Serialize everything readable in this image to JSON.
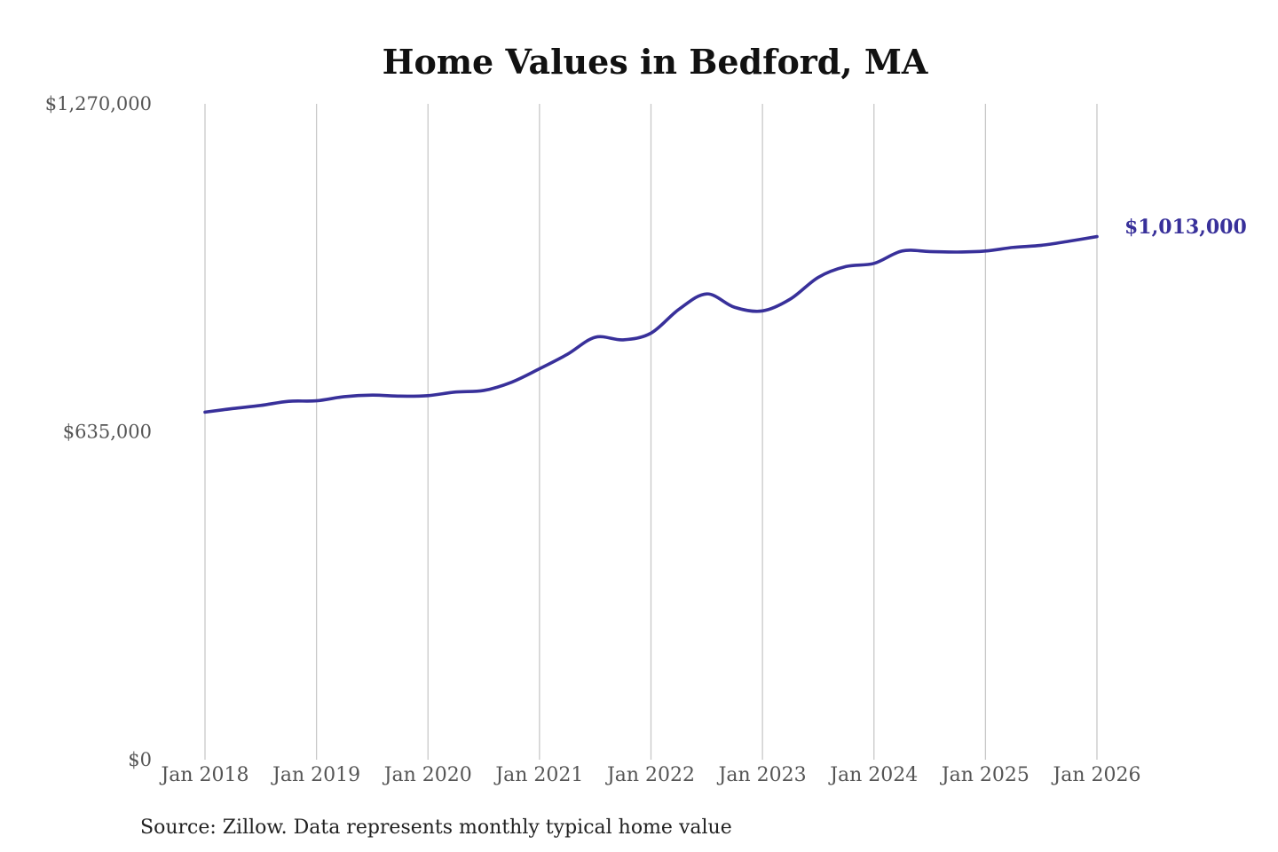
{
  "chart_data": {
    "type": "line",
    "title": "Home Values in Bedford, MA",
    "xlabel": "",
    "ylabel": "",
    "ylim": [
      0,
      1270000
    ],
    "y_ticks": [
      0,
      635000,
      1270000
    ],
    "y_tick_labels": [
      "$0",
      "$635,000",
      "$1,270,000"
    ],
    "x_range": [
      "2018-01",
      "2026-01"
    ],
    "x_ticks": [
      "2018-01",
      "2019-01",
      "2020-01",
      "2021-01",
      "2022-01",
      "2023-01",
      "2024-01",
      "2025-01",
      "2026-01"
    ],
    "x_tick_labels": [
      "Jan 2018",
      "Jan 2019",
      "Jan 2020",
      "Jan 2021",
      "Jan 2022",
      "Jan 2023",
      "Jan 2024",
      "Jan 2025",
      "Jan 2026"
    ],
    "grid": "vertical",
    "line_color": "#38309a",
    "end_label": "$1,013,000",
    "series": [
      {
        "x": [
          "2018-01",
          "2018-04",
          "2018-07",
          "2018-10",
          "2019-01",
          "2019-04",
          "2019-07",
          "2019-10",
          "2020-01",
          "2020-04",
          "2020-07",
          "2020-10",
          "2021-01",
          "2021-04",
          "2021-07",
          "2021-10",
          "2022-01",
          "2022-04",
          "2022-07",
          "2022-10",
          "2023-01",
          "2023-04",
          "2023-07",
          "2023-10",
          "2024-01",
          "2024-04",
          "2024-07",
          "2024-10",
          "2025-01",
          "2025-04",
          "2025-07",
          "2025-10",
          "2026-01"
        ],
        "values": [
          673000,
          680000,
          686000,
          694000,
          695000,
          703000,
          706000,
          704000,
          705000,
          712000,
          715000,
          731000,
          757000,
          785000,
          818000,
          813000,
          826000,
          872000,
          902000,
          876000,
          869000,
          892000,
          934000,
          955000,
          961000,
          985000,
          984000,
          983000,
          985000,
          992000,
          996000,
          1004000,
          1013000
        ]
      }
    ]
  },
  "source_note": "Source: Zillow. Data represents monthly typical home value"
}
